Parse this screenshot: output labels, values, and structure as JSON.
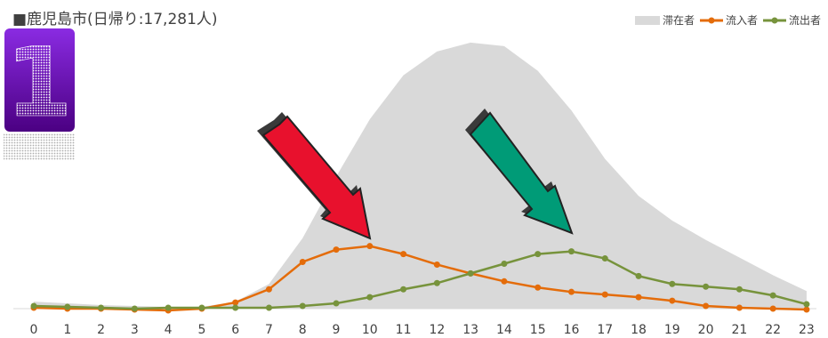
{
  "chart_data": {
    "type": "line",
    "title": "■鹿児島市(日帰り:17,281人)",
    "x": [
      0,
      1,
      2,
      3,
      4,
      5,
      6,
      7,
      8,
      9,
      10,
      11,
      12,
      13,
      14,
      15,
      16,
      17,
      18,
      19,
      20,
      21,
      22,
      23
    ],
    "series": [
      {
        "name": "滞在者",
        "kind": "area",
        "color": "#d9d9d9",
        "values": [
          8,
          6,
          4,
          3,
          2,
          2,
          8,
          28,
          80,
          150,
          215,
          265,
          292,
          302,
          298,
          270,
          225,
          170,
          128,
          100,
          78,
          58,
          38,
          20
        ]
      },
      {
        "name": "流入者",
        "kind": "line",
        "color": "#e46c0a",
        "values": [
          1,
          0,
          0,
          -1,
          -2,
          0,
          7,
          22,
          53,
          67,
          71,
          62,
          50,
          40,
          31,
          24,
          19,
          16,
          13,
          9,
          3,
          1,
          0,
          -1
        ]
      },
      {
        "name": "流出者",
        "kind": "line",
        "color": "#77933c",
        "values": [
          3,
          2,
          1,
          0,
          1,
          1,
          1,
          1,
          3,
          6,
          13,
          22,
          29,
          40,
          51,
          62,
          65,
          57,
          37,
          28,
          25,
          22,
          15,
          5
        ]
      }
    ],
    "ylim": [
      -5,
      310
    ],
    "grid": false,
    "legend_position": "top-right"
  },
  "badge": {
    "number": "1",
    "color": "#6a0dad"
  },
  "arrows": [
    {
      "name": "red-arrow",
      "color": "#e8112d"
    },
    {
      "name": "green-arrow",
      "color": "#009b77"
    }
  ]
}
